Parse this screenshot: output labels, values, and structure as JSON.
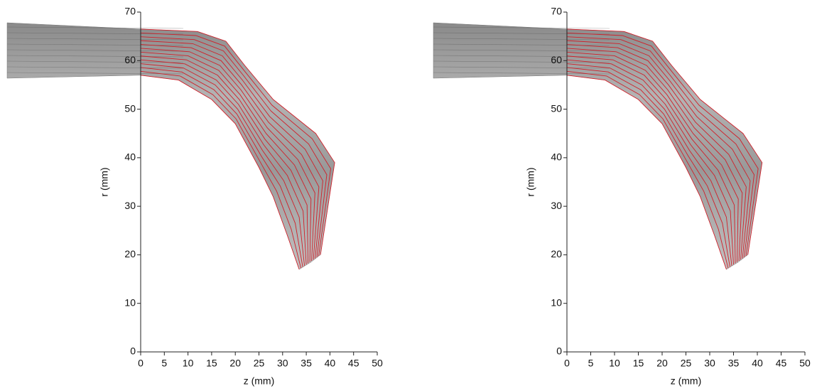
{
  "chart_data": [
    {
      "type": "image",
      "xlabel": "z (mm)",
      "ylabel": "r (mm)",
      "xlim": [
        0,
        50
      ],
      "ylim": [
        0,
        70
      ],
      "xticks": [
        0,
        5,
        10,
        15,
        20,
        25,
        30,
        35,
        40,
        45,
        50
      ],
      "yticks": [
        0,
        10,
        20,
        30,
        40,
        50,
        60,
        70
      ],
      "line_color": "#d0202a"
    },
    {
      "type": "image",
      "xlabel": "z (mm)",
      "ylabel": "r (mm)",
      "xlim": [
        0,
        50
      ],
      "ylim": [
        0,
        70
      ],
      "xticks": [
        0,
        5,
        10,
        15,
        20,
        25,
        30,
        35,
        40,
        45,
        50
      ],
      "yticks": [
        0,
        10,
        20,
        30,
        40,
        50,
        60,
        70
      ],
      "line_color": "#d0202a"
    }
  ]
}
